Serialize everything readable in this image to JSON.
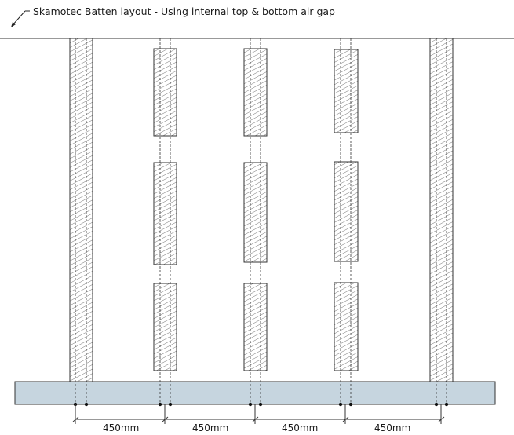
{
  "title": "Skamotec Batten layout - Using internal top & bottom air gap",
  "dimensions": [
    "450mm",
    "450mm",
    "450mm",
    "450mm"
  ],
  "colors": {
    "line": "#222222",
    "hatch": "#555555",
    "base_fill": "#c6d5df",
    "background": "#ffffff"
  }
}
